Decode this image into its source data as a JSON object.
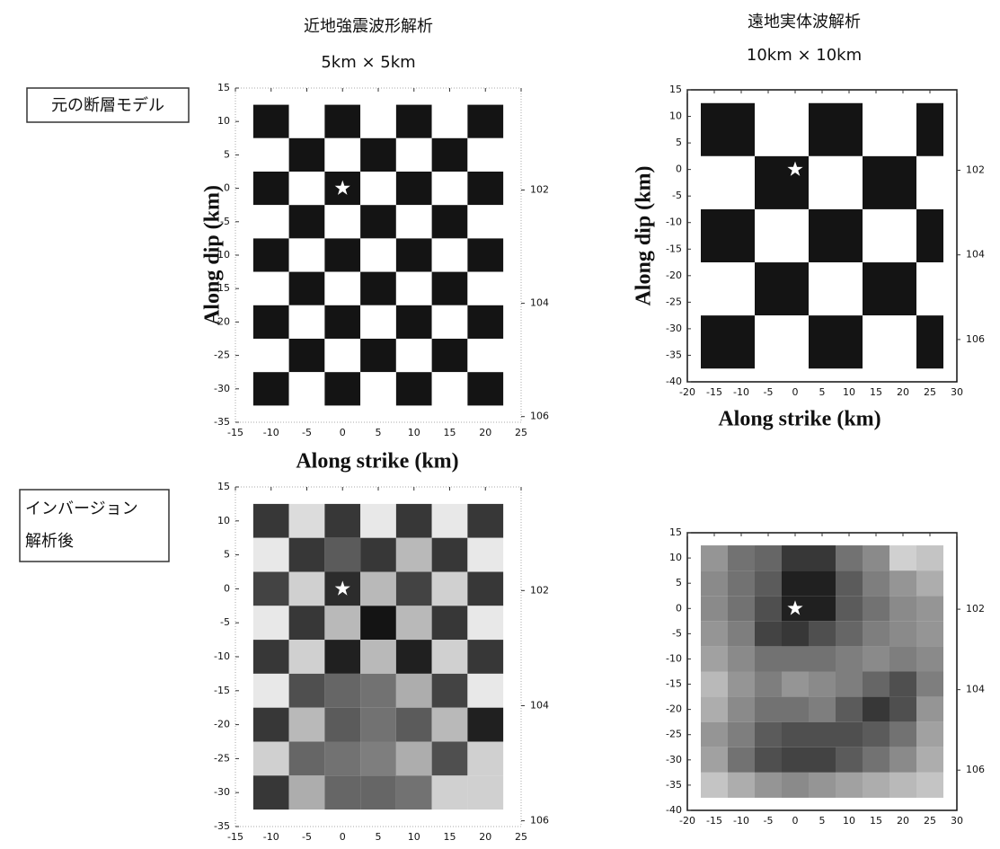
{
  "header": {
    "left_title": "近地強震波形解析",
    "left_subtitle": "5km × 5km",
    "right_title": "遠地実体波解析",
    "right_subtitle": "10km × 10km"
  },
  "row_labels": {
    "top": "元の断層モデル",
    "bottom": [
      "インバージョン",
      "解析後"
    ]
  },
  "chart_data": [
    {
      "type": "heatmap",
      "xlabel": "Along strike (km)",
      "ylabel": "Along dip (km)",
      "x_edges": [
        -12.5,
        -7.5,
        -2.5,
        2.5,
        7.5,
        12.5,
        17.5,
        22.5
      ],
      "y_edges": [
        12.5,
        7.5,
        2.5,
        -2.5,
        -7.5,
        -12.5,
        -17.5,
        -22.5,
        -27.5,
        -32.5
      ],
      "values": [
        [
          1,
          0,
          1,
          0,
          1,
          0,
          1
        ],
        [
          0,
          1,
          0,
          1,
          0,
          1,
          0
        ],
        [
          1,
          0,
          1,
          0,
          1,
          0,
          1
        ],
        [
          0,
          1,
          0,
          1,
          0,
          1,
          0
        ],
        [
          1,
          0,
          1,
          0,
          1,
          0,
          1
        ],
        [
          0,
          1,
          0,
          1,
          0,
          1,
          0
        ],
        [
          1,
          0,
          1,
          0,
          1,
          0,
          1
        ],
        [
          0,
          1,
          0,
          1,
          0,
          1,
          0
        ],
        [
          1,
          0,
          1,
          0,
          1,
          0,
          1
        ]
      ],
      "zlim": [
        0,
        1
      ],
      "hypocenter": {
        "x": 0,
        "y": 0
      },
      "xlim": [
        -15,
        25
      ],
      "xticks": [
        -15,
        -10,
        -5,
        0,
        5,
        10,
        15,
        20,
        25
      ],
      "ylim": [
        -35,
        15
      ],
      "yticks": [
        -35,
        -30,
        -25,
        -20,
        -15,
        -10,
        -5,
        0,
        5,
        10,
        15
      ],
      "y2lim": [
        106.1,
        100.2
      ],
      "y2ticks": [
        102,
        104,
        106
      ]
    },
    {
      "type": "heatmap",
      "xlabel": "Along strike (km)",
      "ylabel": "Along dip (km)",
      "x_edges": [
        -17.5,
        -7.5,
        2.5,
        12.5,
        22.5,
        27.5
      ],
      "y_edges": [
        12.5,
        2.5,
        -7.5,
        -17.5,
        -27.5,
        -37.5
      ],
      "values": [
        [
          1,
          0,
          1,
          0,
          1
        ],
        [
          0,
          1,
          0,
          1,
          0
        ],
        [
          1,
          0,
          1,
          0,
          1
        ],
        [
          0,
          1,
          0,
          1,
          0
        ],
        [
          1,
          0,
          1,
          0,
          1
        ]
      ],
      "zlim": [
        0,
        1
      ],
      "hypocenter": {
        "x": 0,
        "y": 0
      },
      "xlim": [
        -20,
        30
      ],
      "xticks": [
        -20,
        -15,
        -10,
        -5,
        0,
        5,
        10,
        15,
        20,
        25,
        30
      ],
      "ylim": [
        -40,
        15
      ],
      "yticks": [
        -40,
        -35,
        -30,
        -25,
        -20,
        -15,
        -10,
        -5,
        0,
        5,
        10,
        15
      ],
      "y2lim": [
        107,
        100.1
      ],
      "y2ticks": [
        102,
        104,
        106
      ]
    },
    {
      "type": "heatmap",
      "x_edges": [
        -12.5,
        -7.5,
        -2.5,
        2.5,
        7.5,
        12.5,
        17.5,
        22.5
      ],
      "y_edges": [
        12.5,
        7.5,
        2.5,
        -2.5,
        -7.5,
        -12.5,
        -17.5,
        -22.5,
        -27.5,
        -32.5
      ],
      "values": [
        [
          0.85,
          0.15,
          0.85,
          0.1,
          0.85,
          0.1,
          0.85
        ],
        [
          0.1,
          0.85,
          0.7,
          0.85,
          0.3,
          0.85,
          0.1
        ],
        [
          0.8,
          0.2,
          0.9,
          0.3,
          0.8,
          0.2,
          0.85
        ],
        [
          0.1,
          0.85,
          0.3,
          1,
          0.3,
          0.85,
          0.1
        ],
        [
          0.85,
          0.2,
          0.95,
          0.3,
          0.95,
          0.2,
          0.85
        ],
        [
          0.1,
          0.75,
          0.65,
          0.6,
          0.35,
          0.8,
          0.1
        ],
        [
          0.85,
          0.3,
          0.7,
          0.6,
          0.7,
          0.3,
          0.95
        ],
        [
          0.2,
          0.65,
          0.6,
          0.55,
          0.35,
          0.75,
          0.2
        ],
        [
          0.85,
          0.35,
          0.65,
          0.65,
          0.6,
          0.2,
          0.2
        ]
      ],
      "zlim": [
        0,
        1
      ],
      "hypocenter": {
        "x": 0,
        "y": 0
      },
      "xlim": [
        -15,
        25
      ],
      "xticks": [
        -15,
        -10,
        -5,
        0,
        5,
        10,
        15,
        20,
        25
      ],
      "ylim": [
        -35,
        15
      ],
      "yticks": [
        -35,
        -30,
        -25,
        -20,
        -15,
        -10,
        -5,
        0,
        5,
        10,
        15
      ],
      "y2lim": [
        106.1,
        100.2
      ],
      "y2ticks": [
        102,
        104,
        106
      ]
    },
    {
      "type": "heatmap",
      "x_edges": [
        -17.5,
        -12.5,
        -7.5,
        -2.5,
        2.5,
        7.5,
        12.5,
        17.5,
        22.5,
        27.5
      ],
      "y_edges": [
        12.5,
        7.5,
        2.5,
        -2.5,
        -7.5,
        -12.5,
        -17.5,
        -22.5,
        -27.5,
        -32.5,
        -37.5
      ],
      "values": [
        [
          0.45,
          0.6,
          0.65,
          0.85,
          0.85,
          0.6,
          0.5,
          0.2,
          0.25
        ],
        [
          0.5,
          0.6,
          0.7,
          0.95,
          0.95,
          0.7,
          0.55,
          0.45,
          0.35
        ],
        [
          0.5,
          0.6,
          0.75,
          0.95,
          0.95,
          0.7,
          0.6,
          0.5,
          0.45
        ],
        [
          0.45,
          0.55,
          0.8,
          0.85,
          0.75,
          0.65,
          0.55,
          0.5,
          0.45
        ],
        [
          0.4,
          0.5,
          0.6,
          0.6,
          0.6,
          0.55,
          0.5,
          0.55,
          0.5
        ],
        [
          0.3,
          0.45,
          0.55,
          0.45,
          0.5,
          0.55,
          0.65,
          0.75,
          0.55
        ],
        [
          0.35,
          0.5,
          0.6,
          0.6,
          0.55,
          0.7,
          0.85,
          0.75,
          0.45
        ],
        [
          0.45,
          0.55,
          0.7,
          0.75,
          0.75,
          0.75,
          0.7,
          0.6,
          0.4
        ],
        [
          0.4,
          0.6,
          0.75,
          0.8,
          0.8,
          0.7,
          0.6,
          0.5,
          0.35
        ],
        [
          0.25,
          0.35,
          0.45,
          0.5,
          0.45,
          0.4,
          0.35,
          0.3,
          0.25
        ]
      ],
      "zlim": [
        0,
        1
      ],
      "hypocenter": {
        "x": 0,
        "y": 0
      },
      "xlim": [
        -20,
        30
      ],
      "xticks": [
        -20,
        -15,
        -10,
        -5,
        0,
        5,
        10,
        15,
        20,
        25,
        30
      ],
      "ylim": [
        -40,
        15
      ],
      "yticks": [
        -40,
        -35,
        -30,
        -25,
        -20,
        -15,
        -10,
        -5,
        0,
        5,
        10,
        15
      ],
      "y2lim": [
        107,
        100.1
      ],
      "y2ticks": [
        102,
        104,
        106
      ]
    }
  ]
}
